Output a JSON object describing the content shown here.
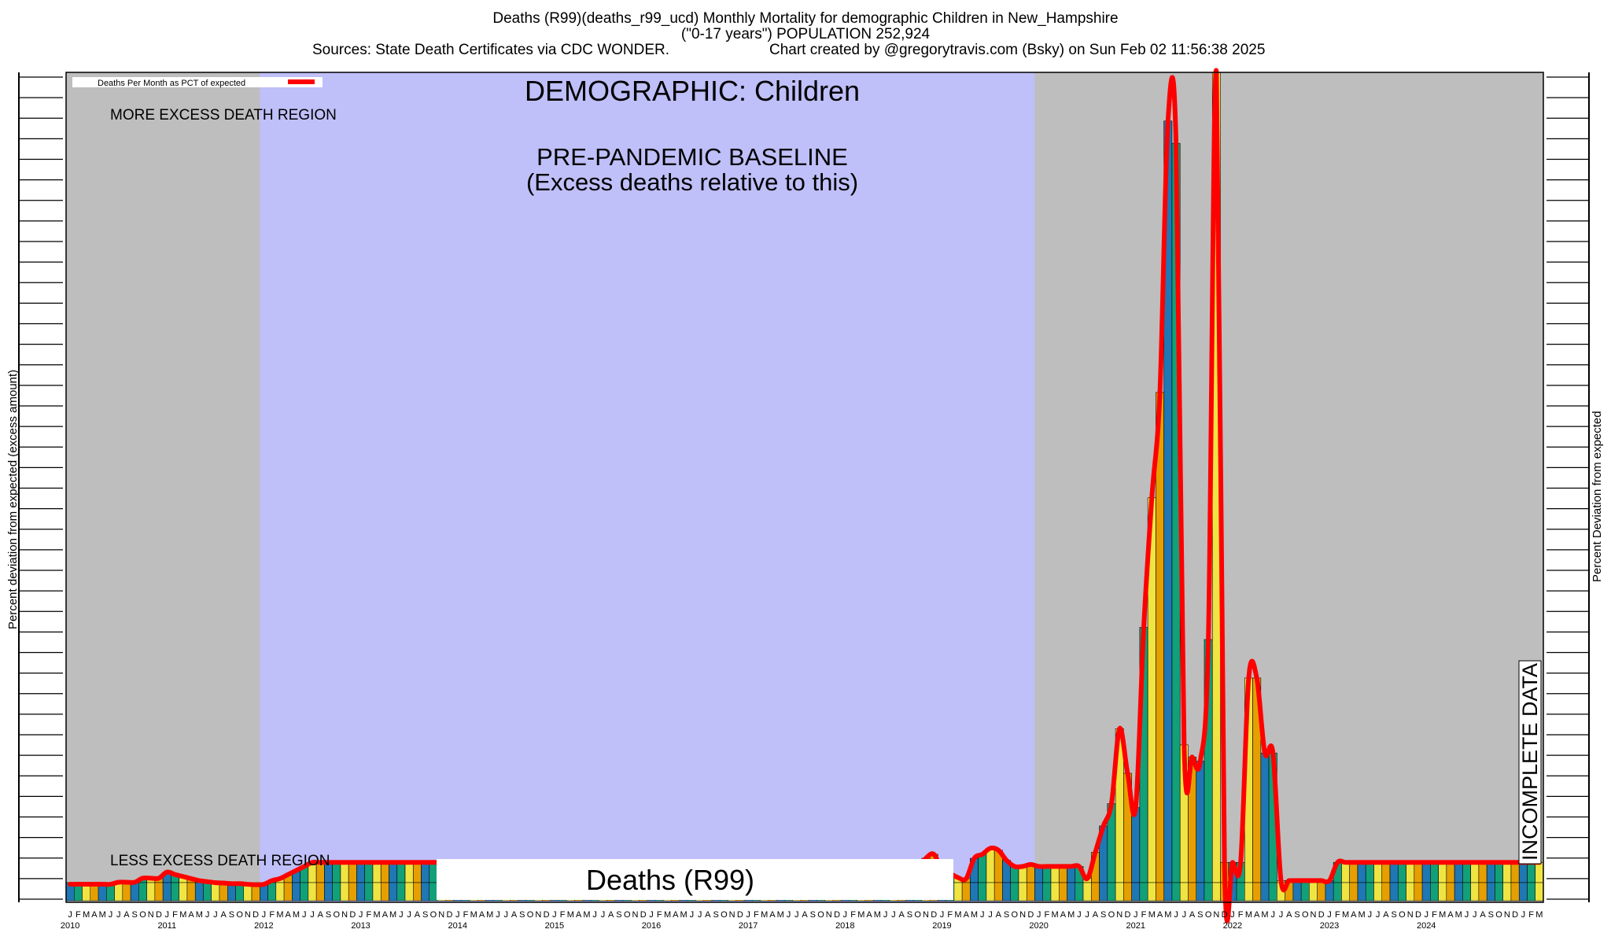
{
  "header": {
    "line1": "Deaths (R99)(deaths_r99_ucd) Monthly Mortality for demographic Children in New_Hampshire",
    "line2": "(\"0-17 years\") POPULATION 252,924",
    "line3_left": "Sources: State Death Certificates via CDC WONDER.",
    "line3_right": "Chart created by @gregorytravis.com (Bsky) on Sun Feb 02 11:56:38 2025"
  },
  "axes": {
    "left_label": "Percent deviation from expected (excess amount)",
    "right_label": "Percent Deviation from expected"
  },
  "colors": {
    "gray_region": "#bebebe",
    "baseline_region": "#bfbff9",
    "curve": "#ff0000",
    "bar_blue": "#1f77b4",
    "bar_green": "#12a079",
    "bar_yellow": "#f0e442",
    "bar_orange": "#e69f00"
  },
  "chart_data": {
    "type": "bar",
    "title": "DEMOGRAPHIC: Children",
    "legend": {
      "label": "Deaths Per Month as PCT of expected",
      "placement": "top-left"
    },
    "regions": {
      "baseline_label_line1": "PRE-PANDEMIC BASELINE",
      "baseline_label_line2": "(Excess deaths relative to this)",
      "baseline_start": "2012-01",
      "baseline_end": "2019-12",
      "more_label": "MORE EXCESS DEATH REGION",
      "less_label": "LESS EXCESS DEATH REGION",
      "incomplete_label": "INCOMPLETE DATA"
    },
    "banner_label": "Deaths (R99)",
    "month_letters": [
      "J",
      "F",
      "M",
      "A",
      "M",
      "J",
      "J",
      "A",
      "S",
      "O",
      "N",
      "D"
    ],
    "years": [
      "2010",
      "2011",
      "2012",
      "2013",
      "2014",
      "2015",
      "2016",
      "2017",
      "2018",
      "2019",
      "2020",
      "2021",
      "2022",
      "2023",
      "2024"
    ],
    "start": "2010-01",
    "ylim": [
      -100,
      4000
    ],
    "values": [
      -8,
      -8,
      -8,
      -8,
      -8,
      -8,
      2,
      2,
      2,
      22,
      22,
      22,
      52,
      40,
      30,
      20,
      10,
      5,
      0,
      -2,
      -5,
      -5,
      -8,
      -10,
      -8,
      10,
      20,
      40,
      60,
      80,
      100,
      100,
      100,
      100,
      100,
      100,
      100,
      100,
      100,
      100,
      100,
      100,
      100,
      100,
      100,
      100,
      100,
      100,
      100,
      100,
      100,
      100,
      100,
      100,
      100,
      100,
      100,
      100,
      100,
      100,
      100,
      100,
      100,
      100,
      100,
      100,
      100,
      100,
      100,
      100,
      100,
      100,
      100,
      100,
      100,
      100,
      100,
      100,
      100,
      100,
      100,
      100,
      100,
      100,
      100,
      100,
      100,
      100,
      100,
      100,
      100,
      100,
      100,
      100,
      100,
      100,
      100,
      100,
      100,
      100,
      100,
      100,
      100,
      100,
      40,
      70,
      120,
      140,
      60,
      45,
      25,
      20,
      120,
      140,
      170,
      160,
      110,
      80,
      80,
      90,
      80,
      80,
      80,
      80,
      80,
      80,
      20,
      150,
      280,
      390,
      760,
      540,
      370,
      1260,
      1900,
      2420,
      3760,
      3650,
      680,
      620,
      600,
      1200,
      4000,
      100,
      100,
      100,
      1010,
      1010,
      640,
      640,
      10,
      10,
      10,
      10,
      10,
      10,
      10,
      100,
      100,
      100,
      100,
      100,
      100,
      100,
      100,
      100,
      100,
      100,
      100,
      100,
      100,
      100,
      100,
      100,
      100,
      100,
      100,
      100,
      100,
      100,
      100,
      100,
      100
    ]
  }
}
